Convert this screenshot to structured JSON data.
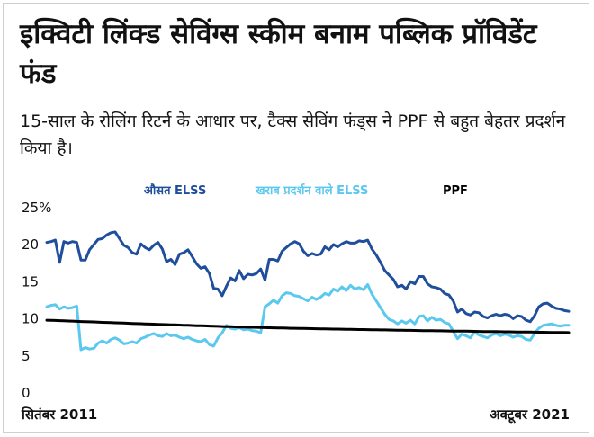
{
  "title": "इक्विटी लिंक्ड सेविंग्स स्कीम बनाम पब्लिक प्रॉविडेंट फंड",
  "subtitle": "15-साल के रोलिंग रिटर्न के आधार पर, टैक्स सेविंग फंड्स ने PPF से बहुत बेहतर प्रदर्शन किया है।",
  "chart_data": {
    "type": "line",
    "x_start_label": "सितंबर 2011",
    "x_end_label": "अक्टूबर 2021",
    "x": [
      0,
      1,
      2,
      3,
      4,
      5,
      6,
      7,
      8,
      9,
      10,
      11,
      12,
      13,
      14,
      15,
      16,
      17,
      18,
      19,
      20,
      21,
      22,
      23,
      24,
      25,
      26,
      27,
      28,
      29,
      30,
      31,
      32,
      33,
      34,
      35,
      36,
      37,
      38,
      39,
      40,
      41,
      42,
      43,
      44,
      45,
      46,
      47,
      48,
      49,
      50,
      51,
      52,
      53,
      54,
      55,
      56,
      57,
      58,
      59,
      60,
      61,
      62,
      63,
      64,
      65,
      66,
      67,
      68,
      69,
      70,
      71,
      72,
      73,
      74,
      75,
      76,
      77,
      78,
      79,
      80,
      81,
      82,
      83,
      84,
      85,
      86,
      87,
      88,
      89,
      90,
      91,
      92,
      93,
      94,
      95,
      96,
      97,
      98,
      99,
      100,
      101,
      102,
      103,
      104,
      105,
      106,
      107,
      108,
      109,
      110,
      111,
      112,
      113,
      114,
      115,
      116,
      117,
      118,
      119,
      120,
      121,
      122
    ],
    "y_ticks": [
      "25%",
      "20",
      "15",
      "10",
      "5",
      "0"
    ],
    "ylim": [
      0,
      25
    ],
    "grid": false,
    "legend_position": "top",
    "series": [
      {
        "name": "औसत ELSS",
        "color": "#1f4e9c",
        "values": [
          20.2,
          20.3,
          20.5,
          17.5,
          20.3,
          20.1,
          20.3,
          20.2,
          17.8,
          17.8,
          19.2,
          19.9,
          20.6,
          20.7,
          21.2,
          21.5,
          21.6,
          20.7,
          19.8,
          19.5,
          18.8,
          18.6,
          20.0,
          19.5,
          19.2,
          19.8,
          20.2,
          19.3,
          17.6,
          17.9,
          17.2,
          18.6,
          18.8,
          19.2,
          18.3,
          17.3,
          16.7,
          16.9,
          16.0,
          14.0,
          13.9,
          13.0,
          14.3,
          15.4,
          15.0,
          16.4,
          15.3,
          15.9,
          15.8,
          16.0,
          16.6,
          15.1,
          17.9,
          17.9,
          17.7,
          19.0,
          19.5,
          20.0,
          20.3,
          20.0,
          19.0,
          18.4,
          18.7,
          18.5,
          18.6,
          19.6,
          19.2,
          19.9,
          19.6,
          20.0,
          20.3,
          20.1,
          20.1,
          20.4,
          20.3,
          20.5,
          19.3,
          18.5,
          17.5,
          16.4,
          15.8,
          15.2,
          14.2,
          14.4,
          13.9,
          14.9,
          14.6,
          15.6,
          15.6,
          14.6,
          14.2,
          14.1,
          13.9,
          13.3,
          13.1,
          12.3,
          10.8,
          11.2,
          10.6,
          10.4,
          10.8,
          10.7,
          10.2,
          10.0,
          10.3,
          10.5,
          10.3,
          10.5,
          10.4,
          9.9,
          10.3,
          10.2,
          9.7,
          9.5,
          10.3,
          11.5,
          11.9,
          12.0,
          11.6,
          11.3,
          11.2,
          11.0,
          10.9
        ],
        "legend_color": "#1f4e9c"
      },
      {
        "name": "खराब प्रदर्शन वाले ELSS",
        "color": "#5bc8ef",
        "values": [
          11.5,
          11.7,
          11.8,
          11.2,
          11.5,
          11.3,
          11.4,
          11.6,
          5.7,
          6.0,
          5.8,
          5.9,
          6.6,
          6.9,
          6.6,
          7.1,
          7.3,
          7.0,
          6.5,
          6.6,
          6.8,
          6.6,
          7.2,
          7.4,
          7.7,
          7.9,
          7.6,
          7.5,
          7.9,
          7.6,
          7.7,
          7.4,
          7.2,
          7.4,
          7.1,
          6.9,
          6.8,
          7.1,
          6.4,
          6.2,
          7.3,
          8.0,
          9.0,
          8.6,
          8.5,
          8.7,
          8.4,
          8.5,
          8.3,
          8.2,
          8.0,
          11.5,
          11.9,
          12.4,
          12.0,
          13.0,
          13.4,
          13.3,
          13.0,
          12.9,
          12.6,
          12.3,
          12.8,
          12.5,
          12.8,
          13.3,
          13.1,
          13.9,
          13.6,
          14.2,
          13.7,
          14.4,
          13.9,
          14.1,
          13.8,
          14.5,
          13.2,
          12.3,
          11.4,
          10.5,
          9.8,
          9.6,
          9.2,
          9.6,
          9.3,
          9.7,
          9.2,
          10.2,
          10.3,
          9.6,
          10.1,
          9.7,
          9.8,
          9.4,
          9.2,
          8.2,
          7.2,
          7.8,
          7.6,
          7.3,
          8.1,
          7.7,
          7.5,
          7.3,
          7.7,
          7.9,
          7.6,
          7.8,
          7.7,
          7.4,
          7.6,
          7.5,
          7.1,
          7.0,
          7.9,
          8.6,
          9.0,
          9.1,
          9.2,
          9.0,
          8.9,
          9.0,
          9.0
        ],
        "legend_color": "#5bc8ef"
      },
      {
        "name": "PPF",
        "color": "#000000",
        "values": [
          9.7,
          9.68,
          9.66,
          9.63,
          9.61,
          9.59,
          9.57,
          9.54,
          9.52,
          9.5,
          9.48,
          9.46,
          9.43,
          9.41,
          9.39,
          9.37,
          9.35,
          9.33,
          9.31,
          9.28,
          9.26,
          9.24,
          9.22,
          9.2,
          9.18,
          9.16,
          9.14,
          9.12,
          9.1,
          9.08,
          9.06,
          9.04,
          9.02,
          9.0,
          8.98,
          8.96,
          8.94,
          8.93,
          8.91,
          8.89,
          8.87,
          8.85,
          8.84,
          8.82,
          8.8,
          8.78,
          8.77,
          8.75,
          8.74,
          8.72,
          8.71,
          8.69,
          8.68,
          8.67,
          8.65,
          8.64,
          8.63,
          8.61,
          8.6,
          8.59,
          8.58,
          8.57,
          8.55,
          8.54,
          8.53,
          8.52,
          8.51,
          8.5,
          8.49,
          8.48,
          8.47,
          8.46,
          8.45,
          8.44,
          8.43,
          8.42,
          8.41,
          8.4,
          8.39,
          8.38,
          8.37,
          8.36,
          8.35,
          8.34,
          8.33,
          8.32,
          8.31,
          8.3,
          8.29,
          8.28,
          8.28,
          8.27,
          8.26,
          8.25,
          8.24,
          8.23,
          8.22,
          8.22,
          8.21,
          8.2,
          8.19,
          8.18,
          8.17,
          8.17,
          8.16,
          8.15,
          8.14,
          8.13,
          8.13,
          8.12,
          8.11,
          8.1,
          8.1,
          8.09,
          8.08,
          8.07,
          8.07,
          8.06,
          8.05,
          8.04,
          8.04,
          8.03,
          8.02
        ],
        "legend_color": "#000000"
      }
    ]
  }
}
